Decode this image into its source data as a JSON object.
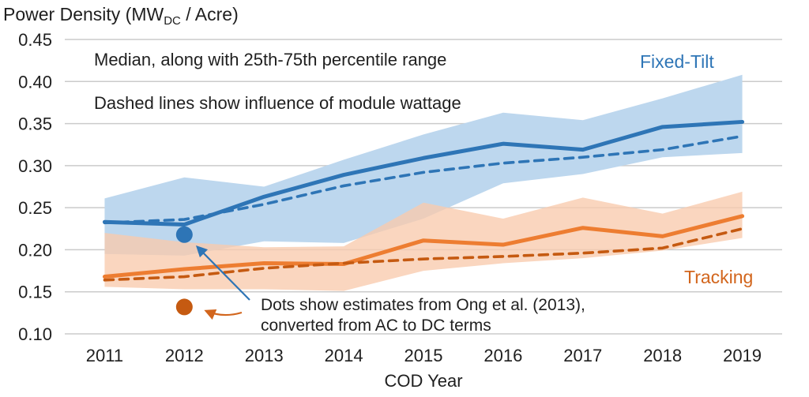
{
  "title": {
    "prefix": "Power Density (MW",
    "subscript": "DC",
    "suffix": " / Acre)"
  },
  "annotations": {
    "median_note": "Median, along with 25th-75th percentile range",
    "dashed_note": "Dashed lines show influence of module wattage",
    "dots_note_line1": "Dots show estimates from Ong et al. (2013),",
    "dots_note_line2": "converted from AC to DC terms",
    "fixed_tilt_label": "Fixed-Tilt",
    "tracking_label": "Tracking"
  },
  "colors": {
    "blue": "#2E75B6",
    "blue_band": "#BDD7EE",
    "orange": "#ED7D31",
    "orange_dark": "#C55A11",
    "orange_band": "#F8CBAD",
    "orange_label": "#D2651C",
    "gridline": "#CBCBCB",
    "text": "#1F1F1F"
  },
  "chart_data": {
    "type": "line",
    "title": "Power Density (MWDC / Acre)",
    "xlabel": "COD Year",
    "ylabel": "Power Density (MWDC / Acre)",
    "x": [
      2011,
      2012,
      2013,
      2014,
      2015,
      2016,
      2017,
      2018,
      2019
    ],
    "ylim": [
      0.1,
      0.45
    ],
    "yticks": [
      0.1,
      0.15,
      0.2,
      0.25,
      0.3,
      0.35,
      0.4,
      0.45
    ],
    "grid": "horizontal",
    "legend_position": "inline-labels",
    "series": [
      {
        "name": "Fixed-Tilt median",
        "style": "solid",
        "color": "#2E75B6",
        "values": [
          0.233,
          0.23,
          0.263,
          0.289,
          0.309,
          0.326,
          0.319,
          0.346,
          0.352
        ]
      },
      {
        "name": "Fixed-Tilt module-wattage influence",
        "style": "dashed",
        "color": "#2E75B6",
        "values": [
          0.232,
          0.236,
          0.254,
          0.276,
          0.292,
          0.303,
          0.31,
          0.319,
          0.335
        ]
      },
      {
        "name": "Tracking median",
        "style": "solid",
        "color": "#ED7D31",
        "values": [
          0.168,
          0.177,
          0.184,
          0.183,
          0.211,
          0.206,
          0.226,
          0.216,
          0.24
        ]
      },
      {
        "name": "Tracking module-wattage influence",
        "style": "dashed",
        "color": "#C55A11",
        "values": [
          0.164,
          0.168,
          0.178,
          0.184,
          0.189,
          0.192,
          0.196,
          0.202,
          0.225
        ]
      }
    ],
    "bands": [
      {
        "name": "Fixed-Tilt 25th-75th percentile range",
        "color": "#BDD7EE",
        "opacity": 1,
        "upper": [
          0.261,
          0.286,
          0.275,
          0.307,
          0.337,
          0.363,
          0.354,
          0.38,
          0.408
        ],
        "lower": [
          0.195,
          0.193,
          0.21,
          0.208,
          0.237,
          0.279,
          0.29,
          0.31,
          0.315
        ]
      },
      {
        "name": "Tracking 25th-75th percentile range",
        "color": "#F8CBAD",
        "opacity": 0.78,
        "upper": [
          0.22,
          0.209,
          0.203,
          0.204,
          0.256,
          0.237,
          0.262,
          0.243,
          0.269
        ],
        "lower": [
          0.156,
          0.153,
          0.153,
          0.151,
          0.175,
          0.184,
          0.19,
          0.199,
          0.214
        ]
      }
    ],
    "points": [
      {
        "name": "Ong et al. (2013) Fixed-Tilt estimate",
        "x": 2012,
        "y": 0.218,
        "color": "#2E75B6"
      },
      {
        "name": "Ong et al. (2013) Tracking estimate",
        "x": 2012,
        "y": 0.132,
        "color": "#C55A11"
      }
    ]
  }
}
